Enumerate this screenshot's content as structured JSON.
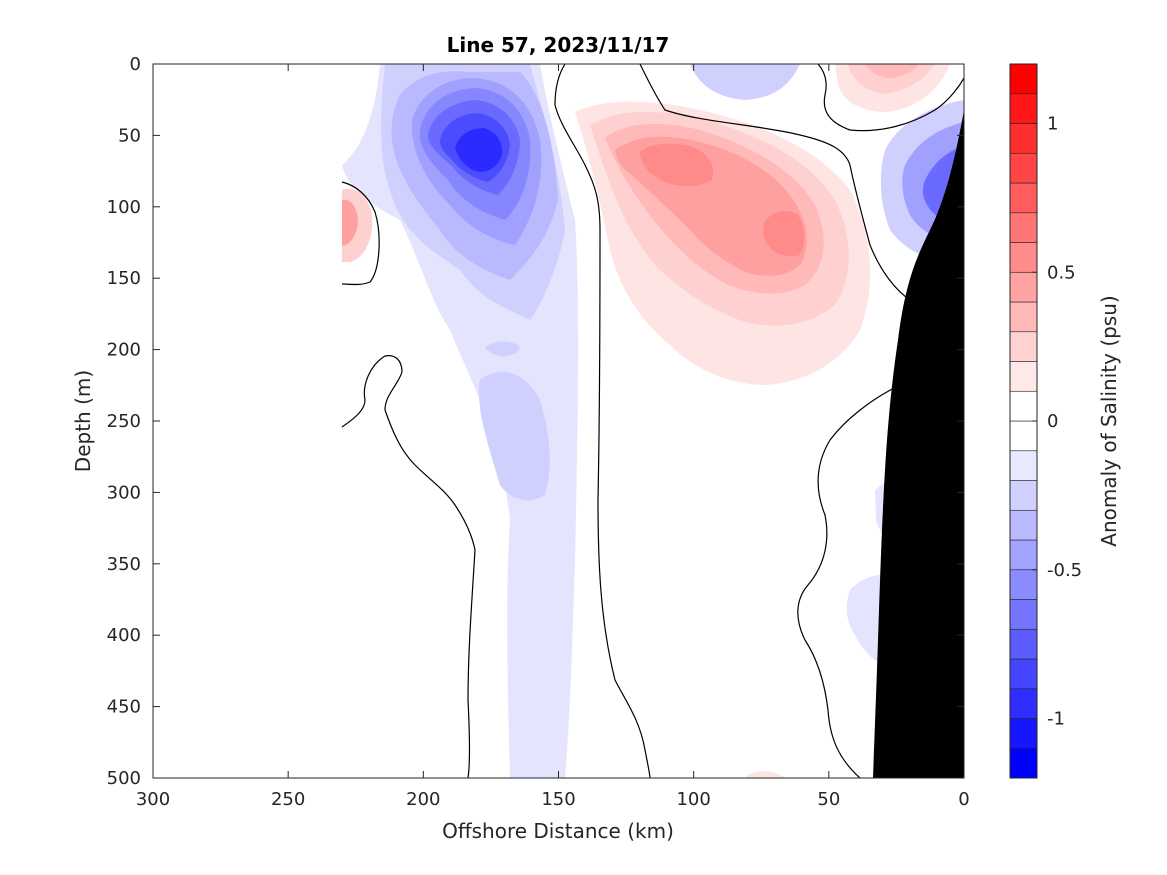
{
  "chart_data": {
    "type": "heatmap",
    "title": "Line 57, 2023/11/17",
    "xlabel": "Offshore Distance (km)",
    "ylabel": "Depth (m)",
    "xlim": [
      300,
      0
    ],
    "ylim": [
      0,
      500
    ],
    "x_reversed": true,
    "y_reversed": true,
    "xticks": [
      "300",
      "250",
      "200",
      "150",
      "100",
      "50",
      "0"
    ],
    "xtick_values": [
      300,
      250,
      200,
      150,
      100,
      50,
      0
    ],
    "yticks": [
      "0",
      "50",
      "100",
      "150",
      "200",
      "250",
      "300",
      "350",
      "400",
      "450",
      "500"
    ],
    "ytick_values": [
      0,
      50,
      100,
      150,
      200,
      250,
      300,
      350,
      400,
      450,
      500
    ],
    "grid": false,
    "colorbar": {
      "label": "Anomaly of Salinity (psu)",
      "range": [
        -1.2,
        1.2
      ],
      "step": 0.1,
      "ticks": [
        "-1",
        "-0.5",
        "0",
        "0.5",
        "1"
      ],
      "tick_values": [
        -1,
        -0.5,
        0,
        0.5,
        1
      ],
      "negative_color": "#0000ff",
      "positive_color": "#ff0000",
      "zero_color": "#ffffff"
    },
    "features": [
      {
        "name": "fresh core near-surface",
        "x_km": 175,
        "depth_m": 70,
        "anomaly": -0.95
      },
      {
        "name": "fresh anomaly deep tongue",
        "x_km": 165,
        "depth_m": 270,
        "anomaly": -0.2
      },
      {
        "name": "salty core",
        "x_km": 105,
        "depth_m": 80,
        "anomaly": 0.45
      },
      {
        "name": "salty core 2",
        "x_km": 67,
        "depth_m": 125,
        "anomaly": 0.45
      },
      {
        "name": "salty patch offshore",
        "x_km": 230,
        "depth_m": 105,
        "anomaly": 0.45
      },
      {
        "name": "salty surface patch nearshore",
        "x_km": 45,
        "depth_m": 5,
        "anomaly": 0.3
      },
      {
        "name": "fresh nearshore patch",
        "x_km": 5,
        "depth_m": 90,
        "anomaly": -0.6
      },
      {
        "name": "shelf bottom",
        "note": "black topography on right"
      }
    ],
    "zero_contour": "black solid line"
  }
}
